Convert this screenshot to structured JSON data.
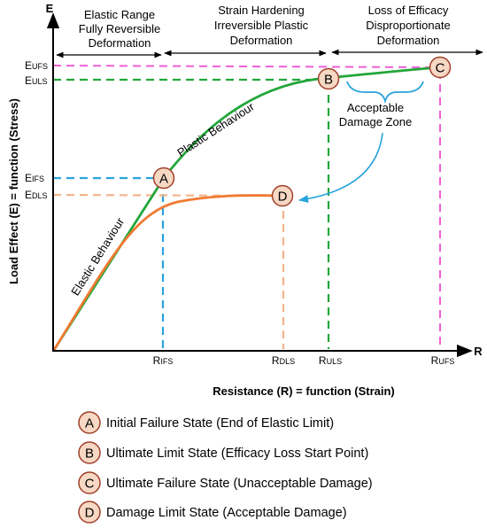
{
  "regions": {
    "elastic": {
      "line1": "Elastic Range",
      "line2": "Fully Reversible",
      "line3": "Deformation"
    },
    "hardening": {
      "line1": "Strain Hardening",
      "line2": "Irreversible Plastic",
      "line3": "Deformation"
    },
    "loss": {
      "line1": "Loss of Efficacy",
      "line2": "Disproportionate",
      "line3": "Deformation"
    }
  },
  "axes": {
    "y_letter": "E",
    "x_letter": "R",
    "y_title": "Load Effect (E) = function (Stress)",
    "x_title": "Resistance (R) = function (Strain)"
  },
  "y_ticks": {
    "ufs": {
      "main": "E",
      "sub": "UFS"
    },
    "uls": {
      "main": "E",
      "sub": "ULS"
    },
    "ifs": {
      "main": "E",
      "sub": "IFS"
    },
    "dls": {
      "main": "E",
      "sub": "DLS"
    }
  },
  "x_ticks": {
    "ifs": {
      "main": "R",
      "sub": "IFS"
    },
    "dls": {
      "main": "R",
      "sub": "DLS"
    },
    "uls": {
      "main": "R",
      "sub": "ULS"
    },
    "ufs": {
      "main": "R",
      "sub": "UFS"
    }
  },
  "curve_labels": {
    "plastic": "Plastic Behaviour",
    "elastic": "Elastic Behaviour"
  },
  "annotation": {
    "line1": "Acceptable",
    "line2": "Damage Zone"
  },
  "points": {
    "a": "A",
    "b": "B",
    "c": "C",
    "d": "D"
  },
  "legend": [
    {
      "letter": "A",
      "text": "Initial Failure State (End of Elastic Limit)"
    },
    {
      "letter": "B",
      "text": "Ultimate Limit State (Efficacy Loss Start Point)"
    },
    {
      "letter": "C",
      "text": "Ultimate Failure State (Unacceptable Damage)"
    },
    {
      "letter": "D",
      "text": "Damage Limit State (Acceptable Damage)"
    }
  ],
  "colors": {
    "green": "#22a63a",
    "orange": "#f07a32",
    "light_orange": "#f4b48c",
    "blue": "#29a3dd",
    "magenta": "#ee5fd6",
    "marker_fill": "#f6d8c4",
    "marker_stroke": "#a0402a"
  }
}
